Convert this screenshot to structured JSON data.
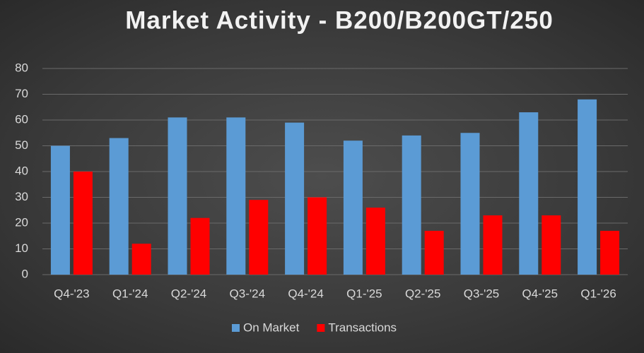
{
  "chart_data": {
    "type": "bar",
    "title": "Market Activity - B200/B200GT/250",
    "categories": [
      "Q4-'23",
      "Q1-'24",
      "Q2-'24",
      "Q3-'24",
      "Q4-'24",
      "Q1-'25",
      "Q2-'25",
      "Q3-'25",
      "Q4-'25",
      "Q1-'26"
    ],
    "series": [
      {
        "name": "On Market",
        "color": "#5b9bd5",
        "values": [
          50,
          53,
          61,
          61,
          59,
          52,
          54,
          55,
          63,
          68
        ]
      },
      {
        "name": "Transactions",
        "color": "#ff0000",
        "values": [
          40,
          12,
          22,
          29,
          30,
          26,
          17,
          23,
          23,
          17
        ]
      }
    ],
    "ylim": [
      0,
      80
    ],
    "yticks": [
      0,
      10,
      20,
      30,
      40,
      50,
      60,
      70,
      80
    ],
    "grid": true,
    "legend": "bottom"
  }
}
